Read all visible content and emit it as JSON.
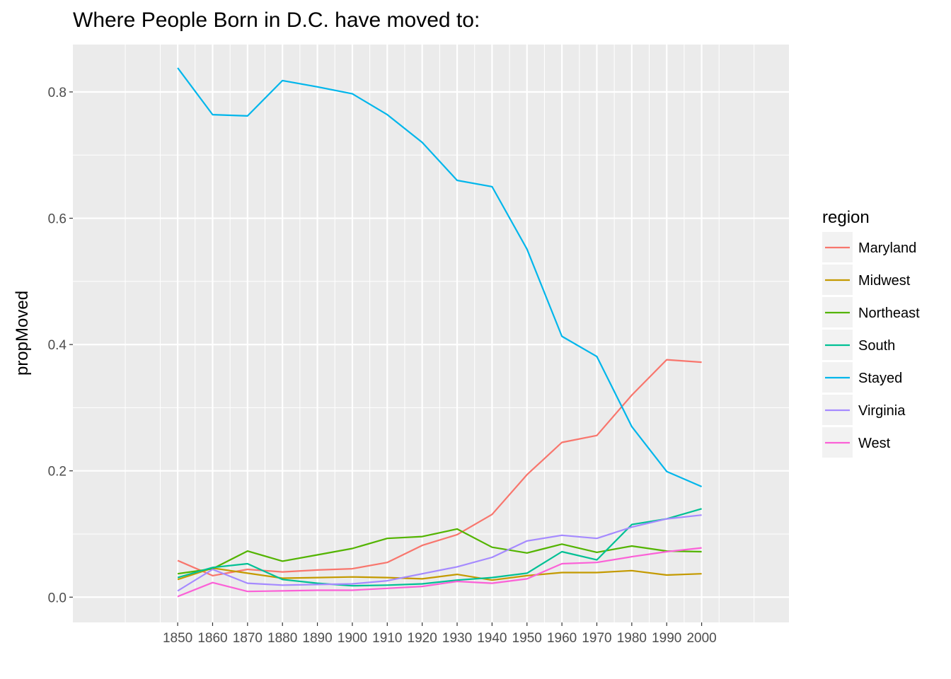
{
  "chart_data": {
    "type": "line",
    "title": "Where People Born in D.C. have moved to:",
    "xlabel": "",
    "ylabel": "propMoved",
    "x": [
      1850,
      1860,
      1870,
      1880,
      1890,
      1900,
      1910,
      1920,
      1930,
      1940,
      1950,
      1960,
      1970,
      1980,
      1990,
      2000
    ],
    "xlim": [
      1820,
      2025
    ],
    "ylim": [
      -0.04,
      0.875
    ],
    "x_ticks": [
      "1850",
      "1860",
      "1870",
      "1880",
      "1890",
      "1900",
      "1910",
      "1920",
      "1930",
      "1940",
      "1950",
      "1960",
      "1970",
      "1980",
      "1990",
      "2000"
    ],
    "y_ticks": [
      "0.0",
      "0.2",
      "0.4",
      "0.6",
      "0.8"
    ],
    "y_tick_values": [
      0.0,
      0.2,
      0.4,
      0.6,
      0.8
    ],
    "grid": true,
    "legend": {
      "title": "region",
      "position": "right"
    },
    "series": [
      {
        "name": "Maryland",
        "color": "#F8766D",
        "values": [
          0.058,
          0.034,
          0.044,
          0.04,
          0.043,
          0.045,
          0.055,
          0.082,
          0.099,
          0.131,
          0.194,
          0.245,
          0.256,
          0.32,
          0.376,
          0.372
        ]
      },
      {
        "name": "Midwest",
        "color": "#C49A00",
        "values": [
          0.028,
          0.046,
          0.038,
          0.03,
          0.031,
          0.032,
          0.031,
          0.029,
          0.036,
          0.027,
          0.034,
          0.039,
          0.039,
          0.042,
          0.035,
          0.037
        ]
      },
      {
        "name": "Northeast",
        "color": "#53B400",
        "values": [
          0.037,
          0.045,
          0.073,
          0.057,
          0.067,
          0.077,
          0.093,
          0.096,
          0.108,
          0.079,
          0.07,
          0.084,
          0.071,
          0.081,
          0.073,
          0.072
        ]
      },
      {
        "name": "South",
        "color": "#00C094",
        "values": [
          0.031,
          0.047,
          0.053,
          0.028,
          0.022,
          0.018,
          0.019,
          0.021,
          0.027,
          0.031,
          0.038,
          0.072,
          0.059,
          0.115,
          0.124,
          0.14
        ]
      },
      {
        "name": "Stayed",
        "color": "#00B6EB",
        "values": [
          0.838,
          0.764,
          0.762,
          0.818,
          0.808,
          0.797,
          0.764,
          0.72,
          0.66,
          0.65,
          0.551,
          0.413,
          0.381,
          0.27,
          0.199,
          0.175
        ]
      },
      {
        "name": "Virginia",
        "color": "#A58AFF",
        "values": [
          0.01,
          0.044,
          0.022,
          0.019,
          0.02,
          0.021,
          0.026,
          0.037,
          0.048,
          0.063,
          0.089,
          0.098,
          0.093,
          0.111,
          0.124,
          0.13
        ]
      },
      {
        "name": "West",
        "color": "#FB61D7",
        "values": [
          0.001,
          0.023,
          0.009,
          0.01,
          0.011,
          0.011,
          0.014,
          0.017,
          0.025,
          0.022,
          0.029,
          0.053,
          0.055,
          0.064,
          0.072,
          0.078
        ]
      }
    ]
  }
}
